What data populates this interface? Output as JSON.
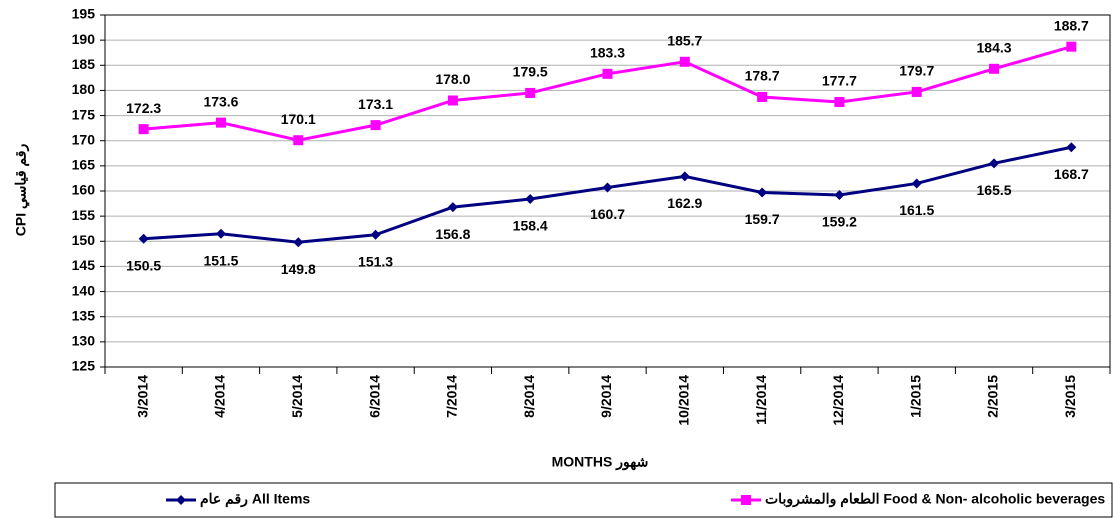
{
  "chart_data": {
    "type": "line",
    "xlabel": "MONTHS شهور",
    "ylabel": "CPI رقم قياسي",
    "categories": [
      "3/2014",
      "4/2014",
      "5/2014",
      "6/2014",
      "7/2014",
      "8/2014",
      "9/2014",
      "10/2014",
      "11/2014",
      "12/2014",
      "1/2015",
      "2/2015",
      "3/2015"
    ],
    "series": [
      {
        "name": "رقم عام All Items",
        "color": "#000080",
        "marker": "diamond",
        "values": [
          150.5,
          151.5,
          149.8,
          151.3,
          156.8,
          158.4,
          160.7,
          162.9,
          159.7,
          159.2,
          161.5,
          165.5,
          168.7
        ],
        "value_labels": [
          "150.5",
          "151.5",
          "149.8",
          "151.3",
          "156.8",
          "158.4",
          "160.7",
          "162.9",
          "159.7",
          "159.2",
          "161.5",
          "165.5",
          "168.7"
        ]
      },
      {
        "name": "الطعام والمشروبات Food & Non- alcoholic beverages",
        "color": "#ff00ff",
        "marker": "square",
        "values": [
          172.3,
          173.6,
          170.1,
          173.1,
          178.0,
          179.5,
          183.3,
          185.7,
          178.7,
          177.7,
          179.7,
          184.3,
          188.7
        ],
        "value_labels": [
          "172.3",
          "173.6",
          "170.1",
          "173.1",
          "178.0",
          "179.5",
          "183.3",
          "185.7",
          "178.7",
          "177.7",
          "179.7",
          "184.3",
          "188.7"
        ]
      }
    ],
    "ylim": [
      125,
      195
    ],
    "yticks": [
      125,
      130,
      135,
      140,
      145,
      150,
      155,
      160,
      165,
      170,
      175,
      180,
      185,
      190,
      195
    ],
    "grid": true,
    "legend": "bottom"
  }
}
